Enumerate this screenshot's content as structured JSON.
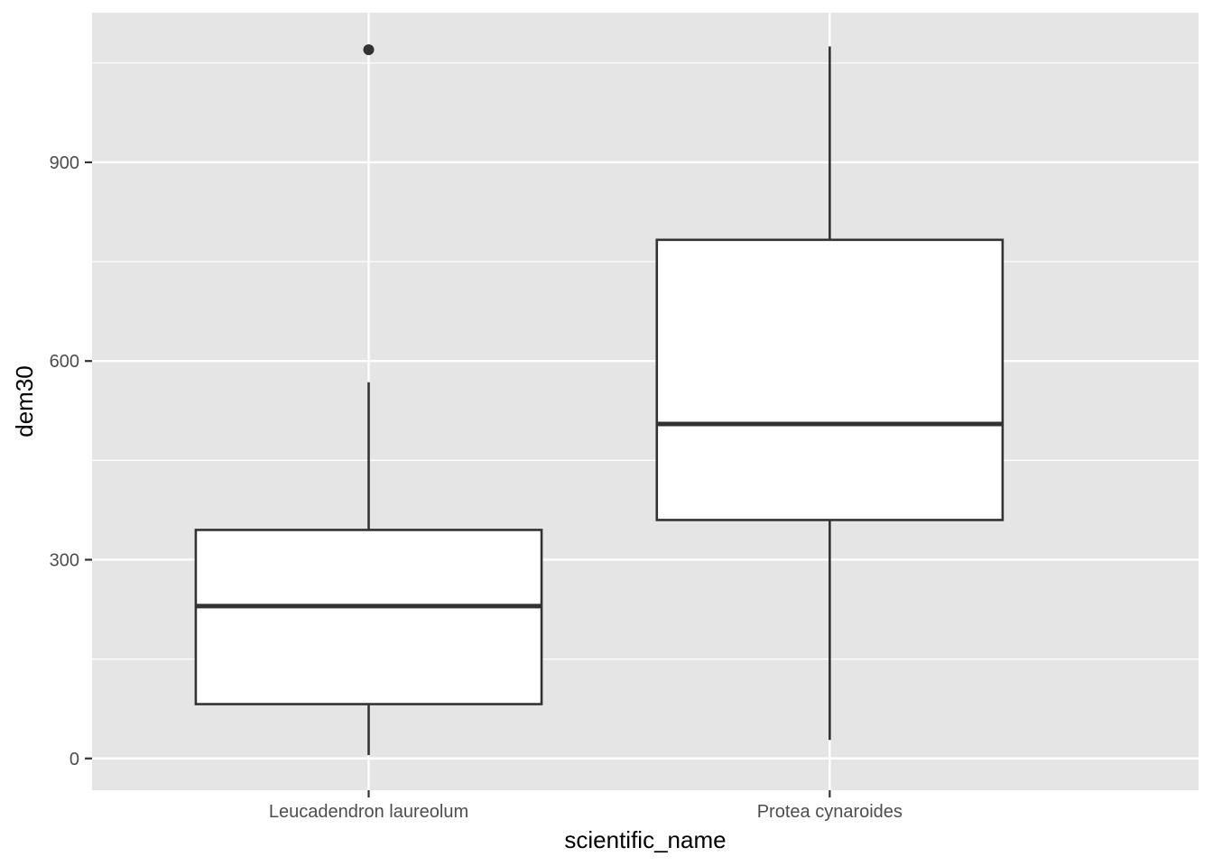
{
  "chart_data": {
    "type": "box",
    "xlabel": "scientific_name",
    "ylabel": "dem30",
    "ylim": [
      -48,
      1126
    ],
    "yticks": [
      0,
      300,
      600,
      900
    ],
    "categories": [
      "Leucadendron laureolum",
      "Protea cynaroides"
    ],
    "boxes": [
      {
        "category": "Leucadendron laureolum",
        "whisker_low": 5,
        "q1": 82,
        "median": 230,
        "q3": 345,
        "whisker_high": 568,
        "outliers": [
          1070
        ]
      },
      {
        "category": "Protea cynaroides",
        "whisker_low": 28,
        "q1": 360,
        "median": 505,
        "q3": 783,
        "whisker_high": 1075,
        "outliers": []
      }
    ],
    "grid": true,
    "colors": {
      "panel_background": "#e5e5e5",
      "grid": "#ffffff",
      "box_fill": "#ffffff",
      "box_stroke": "#333333",
      "tick_text": "#4d4d4d",
      "axis_title": "#000000"
    }
  }
}
